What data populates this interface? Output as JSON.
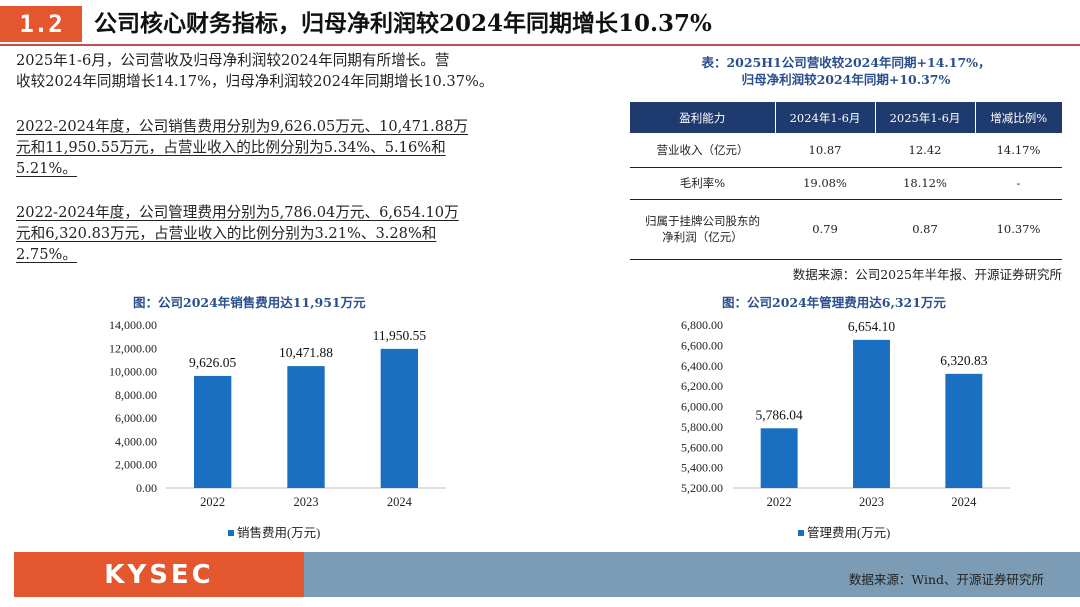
{
  "header": {
    "section_number": "1.2",
    "title": "公司核心财务指标，归母净利润较2024年同期增长10.37%"
  },
  "paragraphs": [
    [
      "2025年1-6月，公司营收及归母净利润较2024年同期有所增长。营",
      "收较2024年同期增长14.17%，归母净利润较2024年同期增长10.37%。"
    ],
    [
      "2022-2024年度，公司销售费用分别为9,626.05万元、10,471.88万",
      "元和11,950.55万元，占营业收入的比例分别为5.34%、5.16%和",
      "5.21%。"
    ],
    [
      "2022-2024年度，公司管理费用分别为5,786.04万元、6,654.10万",
      "元和6,320.83万元，占营业收入的比例分别为3.21%、3.28%和",
      "2.75%。"
    ]
  ],
  "table": {
    "caption_lines": [
      "表：2025H1公司营收较2024年同期+14.17%，",
      "归母净利润较2024年同期+10.37%"
    ],
    "headers": [
      "盈利能力",
      "2024年1-6月",
      "2025年1-6月",
      "增减比例%"
    ],
    "rows": [
      {
        "label_lines": [
          "营业收入（亿元）"
        ],
        "values": [
          "10.87",
          "12.42",
          "14.17%"
        ]
      },
      {
        "label_lines": [
          "毛利率%"
        ],
        "values": [
          "19.08%",
          "18.12%",
          "-"
        ]
      },
      {
        "label_lines": [
          "归属于挂牌公司股东的",
          "净利润（亿元）"
        ],
        "values": [
          "0.79",
          "0.87",
          "10.37%"
        ]
      }
    ],
    "source": "数据来源：公司2025年半年报、开源证券研究所"
  },
  "chart_data": [
    {
      "type": "bar",
      "title": "图：公司2024年销售费用达11,951万元",
      "categories": [
        "2022",
        "2023",
        "2024"
      ],
      "series": [
        {
          "name": "销售费用(万元)",
          "values": [
            9626.05,
            10471.88,
            11950.55
          ]
        }
      ],
      "data_labels": [
        "9,626.05",
        "10,471.88",
        "11,950.55"
      ],
      "ylim": [
        0,
        14000
      ],
      "yticks": [
        "0.00",
        "2,000.00",
        "4,000.00",
        "6,000.00",
        "8,000.00",
        "10,000.00",
        "12,000.00",
        "14,000.00"
      ],
      "color": "#1a6fc0",
      "legend": "bottom"
    },
    {
      "type": "bar",
      "title": "图：公司2024年管理费用达6,321万元",
      "categories": [
        "2022",
        "2023",
        "2024"
      ],
      "series": [
        {
          "name": "管理费用(万元)",
          "values": [
            5786.04,
            6654.1,
            6320.83
          ]
        }
      ],
      "data_labels": [
        "5,786.04",
        "6,654.10",
        "6,320.83"
      ],
      "ylim": [
        5200,
        6800
      ],
      "yticks": [
        "5,200.00",
        "5,400.00",
        "5,600.00",
        "5,800.00",
        "6,000.00",
        "6,200.00",
        "6,400.00",
        "6,600.00",
        "6,800.00"
      ],
      "color": "#1a6fc0",
      "legend": "bottom"
    }
  ],
  "footer": {
    "logo_text": "KYSEC",
    "source": "数据来源：Wind、开源证券研究所"
  }
}
